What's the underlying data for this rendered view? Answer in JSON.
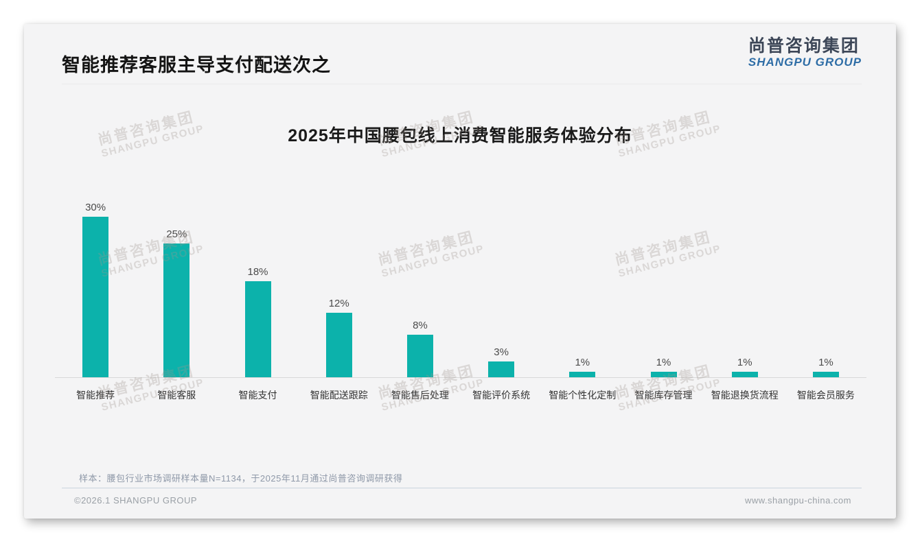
{
  "header": {
    "title": "智能推荐客服主导支付配送次之"
  },
  "logo": {
    "cn": "尚普咨询集团",
    "en": "SHANGPU GROUP"
  },
  "watermark": {
    "cn": "尚普咨询集团",
    "en": "SHANGPU GROUP"
  },
  "footnote": "样本：腰包行业市场调研样本量N=1134，于2025年11月通过尚普咨询调研获得",
  "footer": {
    "left": "©2026.1 SHANGPU GROUP",
    "right": "www.shangpu-china.com"
  },
  "colors": {
    "bar": "#0cb2ab",
    "logo_cn": "#3c4657",
    "logo_en": "#2e6da6",
    "card_bg": "#f4f4f5",
    "axis_line": "#d8d8d8"
  },
  "chart_data": {
    "type": "bar",
    "title": "2025年中国腰包线上消费智能服务体验分布",
    "categories": [
      "智能推荐",
      "智能客服",
      "智能支付",
      "智能配送跟踪",
      "智能售后处理",
      "智能评价系统",
      "智能个性化定制",
      "智能库存管理",
      "智能退换货流程",
      "智能会员服务"
    ],
    "values": [
      30,
      25,
      18,
      12,
      8,
      3,
      1,
      1,
      1,
      1
    ],
    "value_labels": [
      "30%",
      "25%",
      "18%",
      "12%",
      "8%",
      "3%",
      "1%",
      "1%",
      "1%",
      "1%"
    ],
    "xlabel": "",
    "ylabel": "",
    "ylim": [
      0,
      30
    ],
    "grid": false,
    "legend": false,
    "bar_color": "#0cb2ab"
  }
}
